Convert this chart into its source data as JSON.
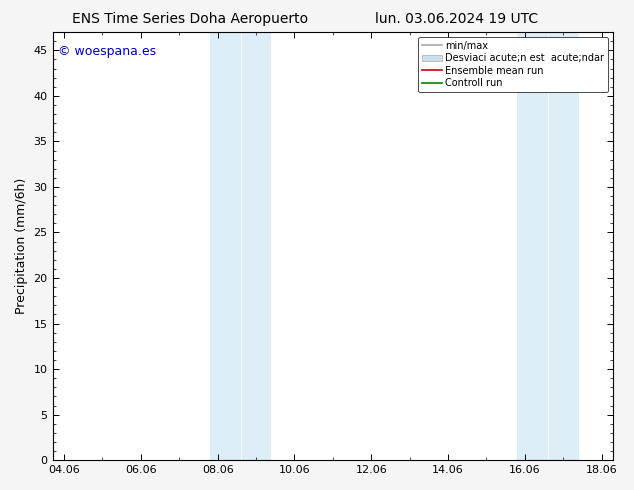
{
  "title_left": "ENS Time Series Doha Aeropuerto",
  "title_right": "lun. 03.06.2024 19 UTC",
  "ylabel": "Precipitation (mm/6h)",
  "xlabel_ticks": [
    "04.06",
    "06.06",
    "08.06",
    "10.06",
    "12.06",
    "14.06",
    "16.06",
    "18.06"
  ],
  "xlim_dates": [
    "2024-06-04",
    "2024-06-18"
  ],
  "ylim": [
    0,
    47
  ],
  "yticks": [
    0,
    5,
    10,
    15,
    20,
    25,
    30,
    35,
    40,
    45
  ],
  "shaded_regions": [
    {
      "xmin": 0.286,
      "xmax": 0.357,
      "color": "#ddeeff"
    },
    {
      "xmin": 0.357,
      "xmax": 0.428,
      "color": "#ddeeff"
    },
    {
      "xmin": 0.786,
      "xmax": 0.857,
      "color": "#ddeeff"
    },
    {
      "xmin": 0.857,
      "xmax": 0.928,
      "color": "#ddeeff"
    }
  ],
  "watermark_text": "© woespana.es",
  "watermark_color": "#0000bb",
  "legend_label_1": "min/max",
  "legend_label_2": "Desviaci acute;n est  acute;ndar",
  "legend_label_3": "Ensemble mean run",
  "legend_label_4": "Controll run",
  "legend_color_1": "#aaaaaa",
  "legend_color_2": "#cce0f0",
  "legend_color_3": "#cc0000",
  "legend_color_4": "#008800",
  "bg_color": "#f5f5f5",
  "plot_bg_color": "#ffffff",
  "tick_label_fontsize": 8,
  "axis_label_fontsize": 9,
  "title_fontsize": 10,
  "legend_fontsize": 7
}
